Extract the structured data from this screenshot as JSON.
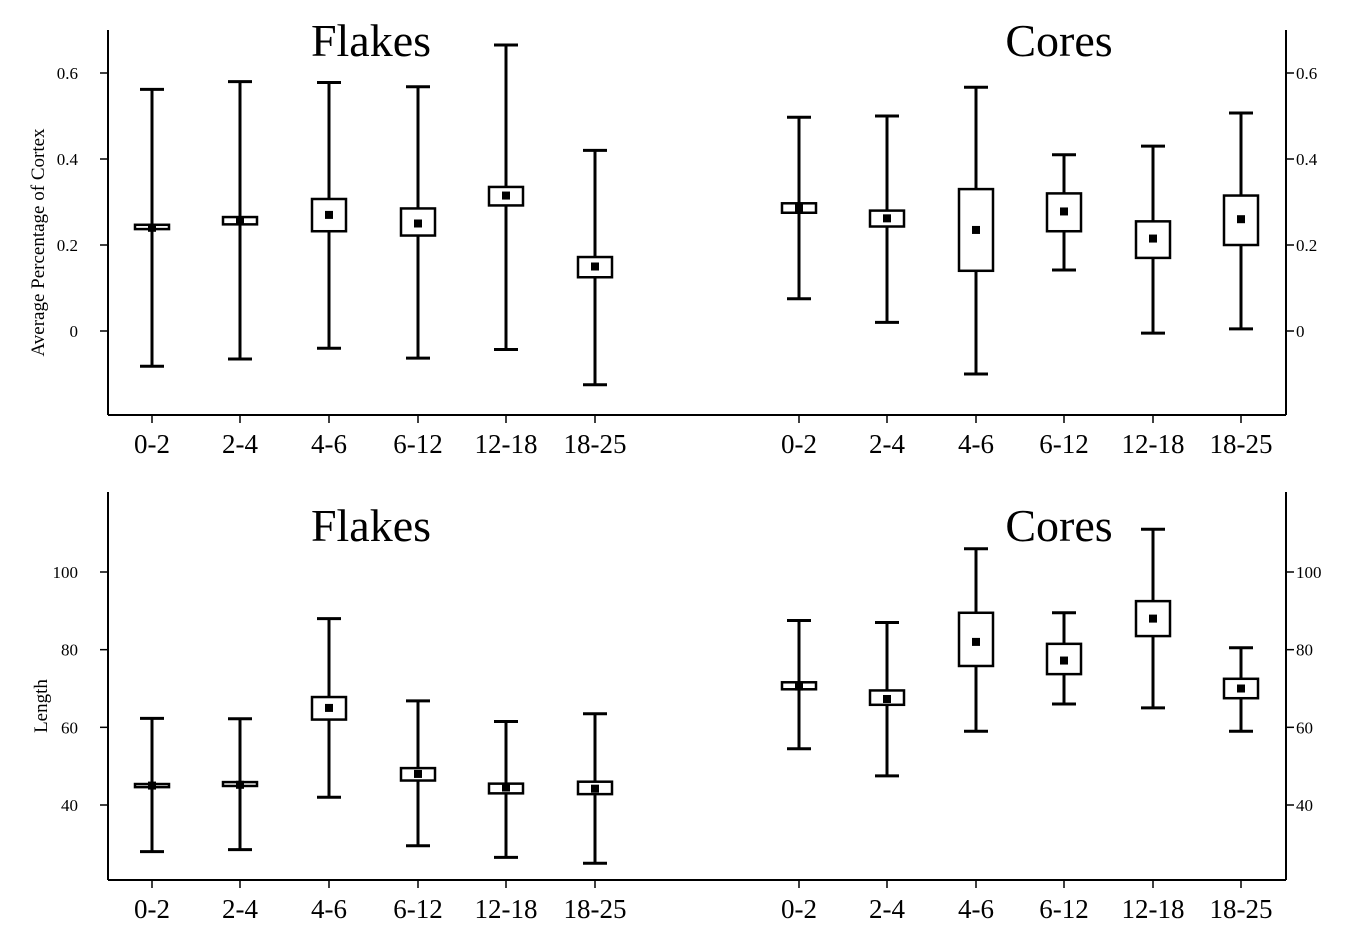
{
  "chart_data": [
    {
      "type": "box",
      "ylabel": "Average Percentage of Cortex",
      "yticks": [
        0,
        0.2,
        0.4,
        0.6
      ],
      "ytick_labels": [
        "0",
        "0.2",
        "0.4",
        "0.6"
      ],
      "ylim": [
        -0.2,
        0.7
      ],
      "groups": [
        {
          "title": "Flakes",
          "categories": [
            "0-2",
            "2-4",
            "4-6",
            "6-12",
            "12-18",
            "18-25"
          ],
          "mean": [
            0.24,
            0.255,
            0.27,
            0.25,
            0.315,
            0.15
          ],
          "box_low": [
            0.237,
            0.248,
            0.232,
            0.222,
            0.292,
            0.125
          ],
          "box_high": [
            0.247,
            0.265,
            0.307,
            0.285,
            0.335,
            0.172
          ],
          "whisker_low": [
            -0.082,
            -0.065,
            -0.04,
            -0.063,
            -0.043,
            -0.125
          ],
          "whisker_high": [
            0.562,
            0.58,
            0.578,
            0.568,
            0.665,
            0.42
          ]
        },
        {
          "title": "Cores",
          "categories": [
            "0-2",
            "2-4",
            "4-6",
            "6-12",
            "12-18",
            "18-25"
          ],
          "mean": [
            0.285,
            0.262,
            0.235,
            0.278,
            0.215,
            0.26
          ],
          "box_low": [
            0.275,
            0.243,
            0.14,
            0.232,
            0.17,
            0.2
          ],
          "box_high": [
            0.297,
            0.28,
            0.33,
            0.32,
            0.255,
            0.315
          ],
          "whisker_low": [
            0.075,
            0.02,
            -0.1,
            0.142,
            -0.005,
            0.005
          ],
          "whisker_high": [
            0.497,
            0.5,
            0.567,
            0.41,
            0.43,
            0.507
          ]
        }
      ]
    },
    {
      "type": "box",
      "ylabel": "Length",
      "yticks": [
        40,
        60,
        80,
        100
      ],
      "ytick_labels": [
        "40",
        "60",
        "80",
        "100"
      ],
      "ylim": [
        20,
        120
      ],
      "groups": [
        {
          "title": "Flakes",
          "categories": [
            "0-2",
            "2-4",
            "4-6",
            "6-12",
            "12-18",
            "18-25"
          ],
          "mean": [
            45,
            45.2,
            65,
            48,
            44.5,
            44.2
          ],
          "box_low": [
            44.6,
            44.9,
            62,
            46.3,
            43,
            42.8
          ],
          "box_high": [
            45.4,
            45.9,
            67.8,
            49.5,
            45.5,
            46
          ],
          "whisker_low": [
            28,
            28.5,
            42,
            29.5,
            26.5,
            25
          ],
          "whisker_high": [
            62.3,
            62.2,
            88,
            66.8,
            61.5,
            63.5
          ]
        },
        {
          "title": "Cores",
          "categories": [
            "0-2",
            "2-4",
            "4-6",
            "6-12",
            "12-18",
            "18-25"
          ],
          "mean": [
            70.5,
            67.3,
            82,
            77.2,
            88,
            70
          ],
          "box_low": [
            69.8,
            65.8,
            75.8,
            73.7,
            83.5,
            67.5
          ],
          "box_high": [
            71.6,
            69.5,
            89.5,
            81.5,
            92.5,
            72.5
          ],
          "whisker_low": [
            54.5,
            47.5,
            59,
            66,
            65,
            59
          ],
          "whisker_high": [
            87.5,
            87,
            106,
            89.5,
            111,
            80.5
          ]
        }
      ]
    }
  ]
}
